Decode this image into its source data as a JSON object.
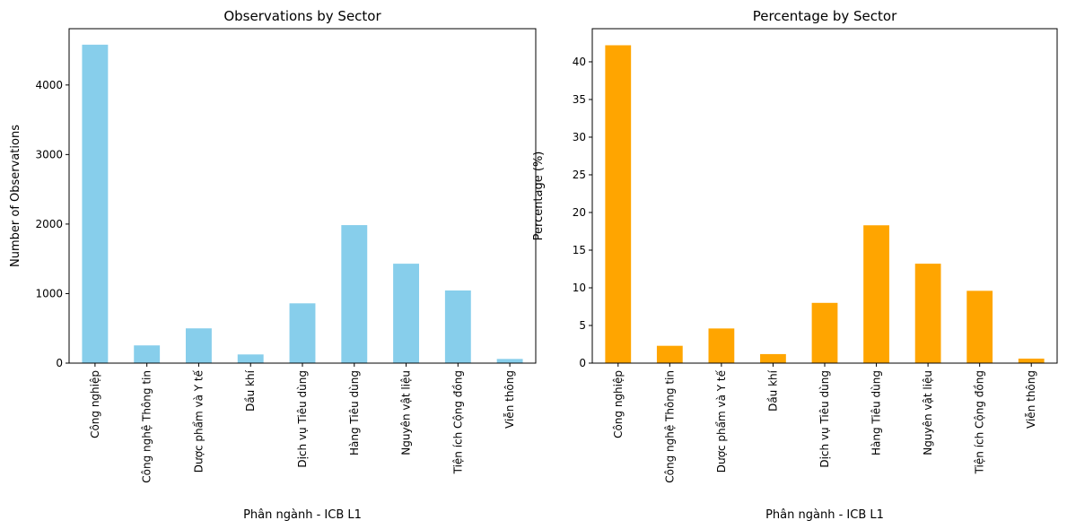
{
  "chart_data": [
    {
      "type": "bar",
      "title": "Observations by Sector",
      "xlabel": "Phân ngành - ICB L1",
      "ylabel": "Number of Observations",
      "categories": [
        "Công nghiệp",
        "Công nghệ Thông tin",
        "Dược phẩm và Y tế",
        "Dầu khí",
        "Dịch vụ Tiêu dùng",
        "Hàng Tiêu dùng",
        "Nguyên vật liệu",
        "Tiện ích Cộng đồng",
        "Viễn thông"
      ],
      "values": [
        4580,
        255,
        500,
        125,
        860,
        1985,
        1430,
        1045,
        60
      ],
      "ylim": [
        0,
        4810
      ],
      "yticks": [
        0,
        1000,
        2000,
        3000,
        4000
      ],
      "color": "#87CEEB",
      "grid": false
    },
    {
      "type": "bar",
      "title": "Percentage by Sector",
      "xlabel": "Phân ngành - ICB L1",
      "ylabel": "Percentage (%)",
      "categories": [
        "Công nghiệp",
        "Công nghệ Thông tin",
        "Dược phẩm và Y tế",
        "Dầu khí",
        "Dịch vụ Tiêu dùng",
        "Hàng Tiêu dùng",
        "Nguyên vật liệu",
        "Tiện ích Cộng đồng",
        "Viễn thông"
      ],
      "values": [
        42.2,
        2.3,
        4.6,
        1.2,
        8.0,
        18.3,
        13.2,
        9.6,
        0.6
      ],
      "ylim": [
        0,
        44.4
      ],
      "yticks": [
        0,
        5,
        10,
        15,
        20,
        25,
        30,
        35,
        40
      ],
      "color": "#FFA500",
      "grid": false
    }
  ]
}
